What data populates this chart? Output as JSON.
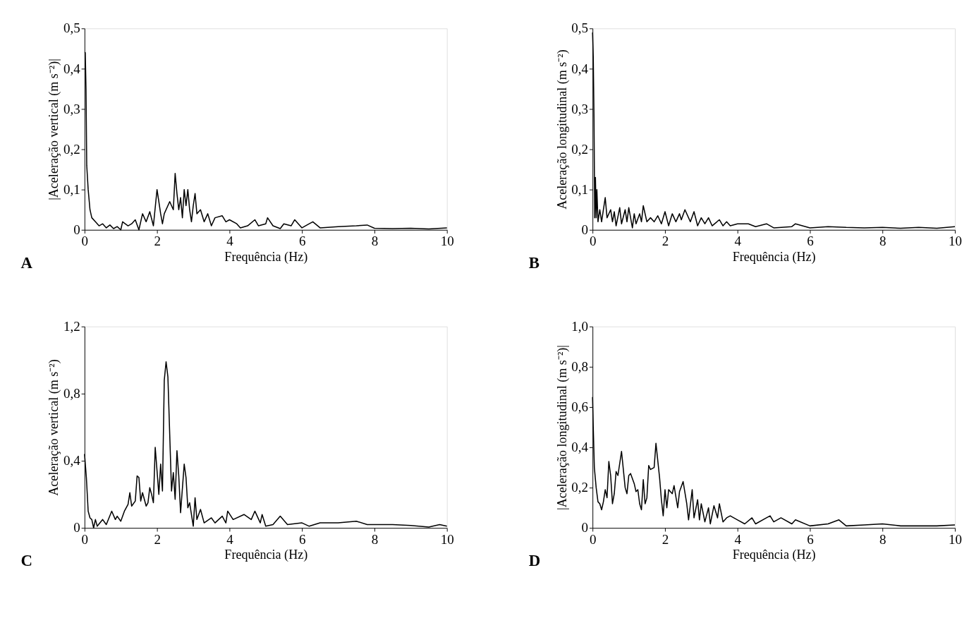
{
  "chart_data": [
    {
      "type": "line",
      "xlabel": "Frequência (Hz)",
      "ylabel": "|Aceleração vertical (m s⁻²)|",
      "annotations": [
        "A"
      ],
      "grid": false,
      "xlim": [
        0,
        10
      ],
      "ylim": [
        0,
        0.5
      ],
      "xticks": [
        0,
        2,
        4,
        6,
        8,
        10
      ],
      "yticks": [
        0,
        {
          "value": 0.1,
          "label": "0,1"
        },
        {
          "value": 0.2,
          "label": "0,2"
        },
        {
          "value": 0.3,
          "label": "0,3"
        },
        {
          "value": 0.4,
          "label": "0,4"
        },
        {
          "value": 0.5,
          "label": "0,5"
        }
      ],
      "series": [
        {
          "color": "#000000",
          "x": [
            0,
            0.02,
            0.04,
            0.06,
            0.1,
            0.15,
            0.2,
            0.3,
            0.4,
            0.5,
            0.6,
            0.7,
            0.8,
            0.9,
            1.0,
            1.05,
            1.2,
            1.3,
            1.4,
            1.5,
            1.6,
            1.7,
            1.8,
            1.9,
            2.0,
            2.1,
            2.15,
            2.2,
            2.35,
            2.45,
            2.5,
            2.55,
            2.6,
            2.65,
            2.7,
            2.75,
            2.8,
            2.85,
            2.9,
            2.95,
            3.0,
            3.05,
            3.1,
            3.2,
            3.3,
            3.4,
            3.5,
            3.6,
            3.8,
            3.9,
            4.0,
            4.2,
            4.3,
            4.5,
            4.7,
            4.8,
            5.0,
            5.05,
            5.2,
            5.4,
            5.5,
            5.7,
            5.8,
            6.0,
            6.2,
            6.3,
            6.5,
            7.0,
            7.5,
            7.8,
            8.0,
            8.5,
            9.0,
            9.5,
            10.0
          ],
          "values": [
            0.44,
            0.44,
            0.35,
            0.16,
            0.1,
            0.05,
            0.03,
            0.02,
            0.01,
            0.015,
            0.005,
            0.012,
            0.003,
            0.008,
            0.0,
            0.02,
            0.01,
            0.015,
            0.025,
            0.0,
            0.04,
            0.02,
            0.045,
            0.01,
            0.1,
            0.04,
            0.015,
            0.04,
            0.07,
            0.05,
            0.14,
            0.09,
            0.05,
            0.08,
            0.03,
            0.1,
            0.06,
            0.1,
            0.05,
            0.02,
            0.06,
            0.09,
            0.04,
            0.05,
            0.02,
            0.04,
            0.01,
            0.03,
            0.035,
            0.02,
            0.025,
            0.015,
            0.005,
            0.01,
            0.025,
            0.01,
            0.015,
            0.03,
            0.01,
            0.003,
            0.015,
            0.01,
            0.025,
            0.005,
            0.015,
            0.02,
            0.005,
            0.008,
            0.01,
            0.012,
            0.004,
            0.003,
            0.004,
            0.002,
            0.005
          ]
        }
      ]
    },
    {
      "type": "line",
      "xlabel": "Frequência (Hz)",
      "ylabel": "Aceleração longitudinal (m s⁻²)",
      "annotations": [
        "B"
      ],
      "grid": false,
      "xlim": [
        0,
        10
      ],
      "ylim": [
        0,
        0.5
      ],
      "xticks": [
        0,
        2,
        4,
        6,
        8,
        10
      ],
      "yticks": [
        0,
        {
          "value": 0.1,
          "label": "0,1"
        },
        {
          "value": 0.2,
          "label": "0,2"
        },
        {
          "value": 0.3,
          "label": "0,3"
        },
        {
          "value": 0.4,
          "label": "0,4"
        },
        {
          "value": 0.5,
          "label": "0,5"
        }
      ],
      "series": [
        {
          "color": "#000000",
          "x": [
            0,
            0.02,
            0.04,
            0.06,
            0.08,
            0.1,
            0.12,
            0.15,
            0.2,
            0.25,
            0.3,
            0.35,
            0.4,
            0.5,
            0.55,
            0.6,
            0.65,
            0.75,
            0.8,
            0.9,
            0.95,
            1.0,
            1.1,
            1.15,
            1.2,
            1.3,
            1.35,
            1.4,
            1.5,
            1.6,
            1.7,
            1.8,
            1.9,
            2.0,
            2.1,
            2.2,
            2.3,
            2.4,
            2.45,
            2.55,
            2.7,
            2.8,
            2.9,
            3.0,
            3.1,
            3.2,
            3.3,
            3.5,
            3.6,
            3.7,
            3.8,
            4.0,
            4.3,
            4.5,
            4.8,
            5.0,
            5.5,
            5.6,
            6.0,
            6.5,
            7.0,
            7.5,
            8.0,
            8.5,
            9.0,
            9.5,
            10.0
          ],
          "values": [
            0.49,
            0.43,
            0.28,
            0.03,
            0.13,
            0.03,
            0.1,
            0.02,
            0.05,
            0.02,
            0.05,
            0.08,
            0.03,
            0.05,
            0.02,
            0.045,
            0.01,
            0.055,
            0.015,
            0.05,
            0.02,
            0.055,
            0.005,
            0.04,
            0.015,
            0.04,
            0.02,
            0.06,
            0.02,
            0.03,
            0.02,
            0.035,
            0.015,
            0.045,
            0.01,
            0.04,
            0.02,
            0.04,
            0.025,
            0.05,
            0.02,
            0.045,
            0.01,
            0.03,
            0.015,
            0.03,
            0.01,
            0.025,
            0.01,
            0.02,
            0.01,
            0.015,
            0.015,
            0.008,
            0.015,
            0.005,
            0.008,
            0.015,
            0.005,
            0.008,
            0.006,
            0.005,
            0.006,
            0.004,
            0.006,
            0.004,
            0.008
          ]
        }
      ]
    },
    {
      "type": "line",
      "xlabel": "Frequência (Hz)",
      "ylabel": "Aceleração vertical (m s⁻²)",
      "annotations": [
        "C"
      ],
      "grid": false,
      "xlim": [
        0,
        10
      ],
      "ylim": [
        0,
        1.2
      ],
      "xticks": [
        0,
        2,
        4,
        6,
        8,
        10
      ],
      "yticks": [
        0,
        {
          "value": 0.4,
          "label": "0,4"
        },
        {
          "value": 0.8,
          "label": "0,8"
        },
        {
          "value": 1.2,
          "label": "1,2"
        }
      ],
      "series": [
        {
          "color": "#000000",
          "x": [
            0,
            0.05,
            0.1,
            0.15,
            0.2,
            0.25,
            0.3,
            0.35,
            0.5,
            0.6,
            0.75,
            0.85,
            0.9,
            1.0,
            1.1,
            1.2,
            1.25,
            1.3,
            1.4,
            1.45,
            1.5,
            1.55,
            1.6,
            1.7,
            1.75,
            1.8,
            1.85,
            1.9,
            1.95,
            2.05,
            2.1,
            2.15,
            2.2,
            2.25,
            2.3,
            2.4,
            2.45,
            2.5,
            2.55,
            2.6,
            2.65,
            2.75,
            2.8,
            2.85,
            2.9,
            3.0,
            3.05,
            3.1,
            3.2,
            3.3,
            3.5,
            3.6,
            3.8,
            3.9,
            3.95,
            4.1,
            4.4,
            4.6,
            4.7,
            4.85,
            4.9,
            5.0,
            5.2,
            5.4,
            5.6,
            6.0,
            6.2,
            6.5,
            7.0,
            7.5,
            7.8,
            8.0,
            8.5,
            9.0,
            9.5,
            9.8,
            10.0
          ],
          "values": [
            0.44,
            0.3,
            0.1,
            0.06,
            0.05,
            0.0,
            0.05,
            0.01,
            0.05,
            0.02,
            0.1,
            0.05,
            0.07,
            0.04,
            0.1,
            0.14,
            0.21,
            0.13,
            0.16,
            0.31,
            0.3,
            0.16,
            0.21,
            0.13,
            0.15,
            0.24,
            0.2,
            0.15,
            0.48,
            0.2,
            0.38,
            0.22,
            0.88,
            0.99,
            0.9,
            0.22,
            0.33,
            0.17,
            0.46,
            0.31,
            0.09,
            0.38,
            0.3,
            0.12,
            0.15,
            0.01,
            0.18,
            0.05,
            0.11,
            0.03,
            0.06,
            0.03,
            0.07,
            0.03,
            0.1,
            0.05,
            0.08,
            0.05,
            0.1,
            0.03,
            0.08,
            0.01,
            0.02,
            0.07,
            0.02,
            0.03,
            0.01,
            0.03,
            0.03,
            0.04,
            0.02,
            0.02,
            0.02,
            0.015,
            0.005,
            0.02,
            0.01
          ]
        }
      ]
    },
    {
      "type": "line",
      "xlabel": "Frequência (Hz)",
      "ylabel": "|Aceleração longitudinal (m s⁻²)|",
      "annotations": [
        "D"
      ],
      "grid": false,
      "xlim": [
        0,
        10
      ],
      "ylim": [
        0,
        1.0
      ],
      "xticks": [
        0,
        2,
        4,
        6,
        8,
        10
      ],
      "yticks": [
        0,
        {
          "value": 0.2,
          "label": "0,2"
        },
        {
          "value": 0.4,
          "label": "0,4"
        },
        {
          "value": 0.6,
          "label": "0,6"
        },
        {
          "value": 0.8,
          "label": "0,8"
        },
        {
          "value": 1.0,
          "label": "1,0"
        }
      ],
      "series": [
        {
          "color": "#000000",
          "x": [
            0,
            0.02,
            0.05,
            0.1,
            0.15,
            0.2,
            0.25,
            0.3,
            0.35,
            0.4,
            0.45,
            0.5,
            0.55,
            0.6,
            0.65,
            0.7,
            0.8,
            0.85,
            0.9,
            0.95,
            1.0,
            1.05,
            1.15,
            1.2,
            1.25,
            1.3,
            1.35,
            1.4,
            1.45,
            1.5,
            1.55,
            1.6,
            1.7,
            1.75,
            1.85,
            1.9,
            1.95,
            2.0,
            2.05,
            2.1,
            2.2,
            2.25,
            2.35,
            2.4,
            2.5,
            2.6,
            2.65,
            2.75,
            2.8,
            2.9,
            2.95,
            3.0,
            3.1,
            3.2,
            3.25,
            3.35,
            3.45,
            3.5,
            3.6,
            3.7,
            3.8,
            4.0,
            4.2,
            4.4,
            4.5,
            4.8,
            4.9,
            5.0,
            5.2,
            5.5,
            5.6,
            6.0,
            6.5,
            6.8,
            7.0,
            7.5,
            8.0,
            8.5,
            9.0,
            9.5,
            10.0
          ],
          "values": [
            0.65,
            0.5,
            0.3,
            0.2,
            0.13,
            0.12,
            0.09,
            0.13,
            0.19,
            0.15,
            0.33,
            0.26,
            0.12,
            0.17,
            0.28,
            0.26,
            0.38,
            0.29,
            0.2,
            0.17,
            0.26,
            0.27,
            0.22,
            0.18,
            0.19,
            0.12,
            0.09,
            0.24,
            0.12,
            0.15,
            0.31,
            0.29,
            0.3,
            0.42,
            0.25,
            0.14,
            0.06,
            0.19,
            0.1,
            0.19,
            0.17,
            0.21,
            0.1,
            0.18,
            0.23,
            0.12,
            0.04,
            0.19,
            0.05,
            0.14,
            0.04,
            0.12,
            0.03,
            0.1,
            0.02,
            0.11,
            0.05,
            0.12,
            0.03,
            0.05,
            0.06,
            0.04,
            0.02,
            0.05,
            0.02,
            0.05,
            0.06,
            0.03,
            0.05,
            0.02,
            0.04,
            0.01,
            0.02,
            0.04,
            0.01,
            0.015,
            0.02,
            0.01,
            0.01,
            0.01,
            0.015
          ]
        }
      ]
    }
  ]
}
